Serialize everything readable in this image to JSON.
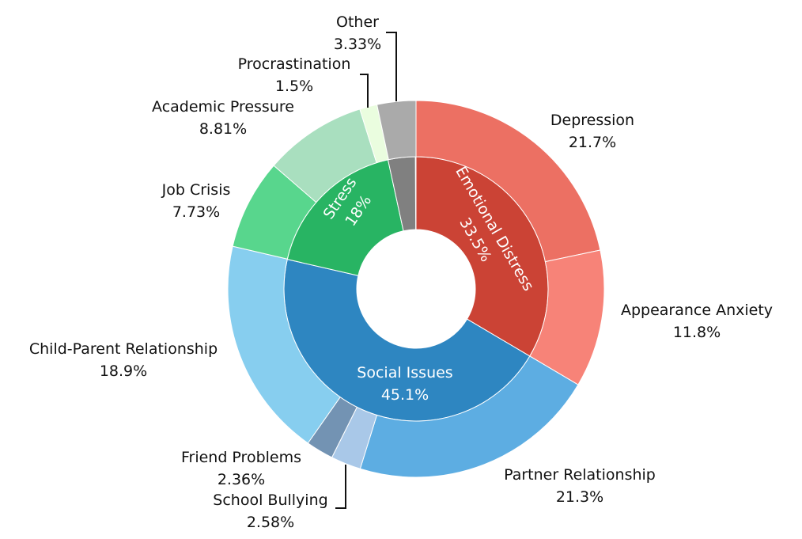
{
  "chart_data": {
    "type": "sunburst",
    "title": "",
    "inner": [
      {
        "name": "Emotional Distress",
        "value": 33.5,
        "pct": "33.5%",
        "color": "#CB4335"
      },
      {
        "name": "Social Issues",
        "value": 45.1,
        "pct": "45.1%",
        "color": "#2E86C1"
      },
      {
        "name": "Stress",
        "value": 18.0,
        "pct": "18%",
        "color": "#28B463"
      },
      {
        "name": "",
        "value": 3.33,
        "pct": "",
        "color": "#808080"
      }
    ],
    "outer": [
      {
        "name": "Depression",
        "value": 21.7,
        "pct": "21.7%",
        "parent": "Emotional Distress",
        "color": "#EC7063"
      },
      {
        "name": "Appearance Anxiety",
        "value": 11.8,
        "pct": "11.8%",
        "parent": "Emotional Distress",
        "color": "#F78378"
      },
      {
        "name": "Partner Relationship",
        "value": 21.3,
        "pct": "21.3%",
        "parent": "Social Issues",
        "color": "#5DADE2"
      },
      {
        "name": "School Bullying",
        "value": 2.58,
        "pct": "2.58%",
        "parent": "Social Issues",
        "color": "#A9C8E8"
      },
      {
        "name": "Friend Problems",
        "value": 2.36,
        "pct": "2.36%",
        "parent": "Social Issues",
        "color": "#7393B3"
      },
      {
        "name": "Child-Parent Relationship",
        "value": 18.9,
        "pct": "18.9%",
        "parent": "Social Issues",
        "color": "#87CEEF"
      },
      {
        "name": "Job Crisis",
        "value": 7.73,
        "pct": "7.73%",
        "parent": "Stress",
        "color": "#58D68D"
      },
      {
        "name": "Academic Pressure",
        "value": 8.81,
        "pct": "8.81%",
        "parent": "Stress",
        "color": "#A9DFBF"
      },
      {
        "name": "Procrastination",
        "value": 1.5,
        "pct": "1.5%",
        "parent": "Stress",
        "color": "#EAFDDF"
      },
      {
        "name": "Other",
        "value": 3.33,
        "pct": "3.33%",
        "parent": "",
        "color": "#AAAAAA"
      }
    ]
  }
}
